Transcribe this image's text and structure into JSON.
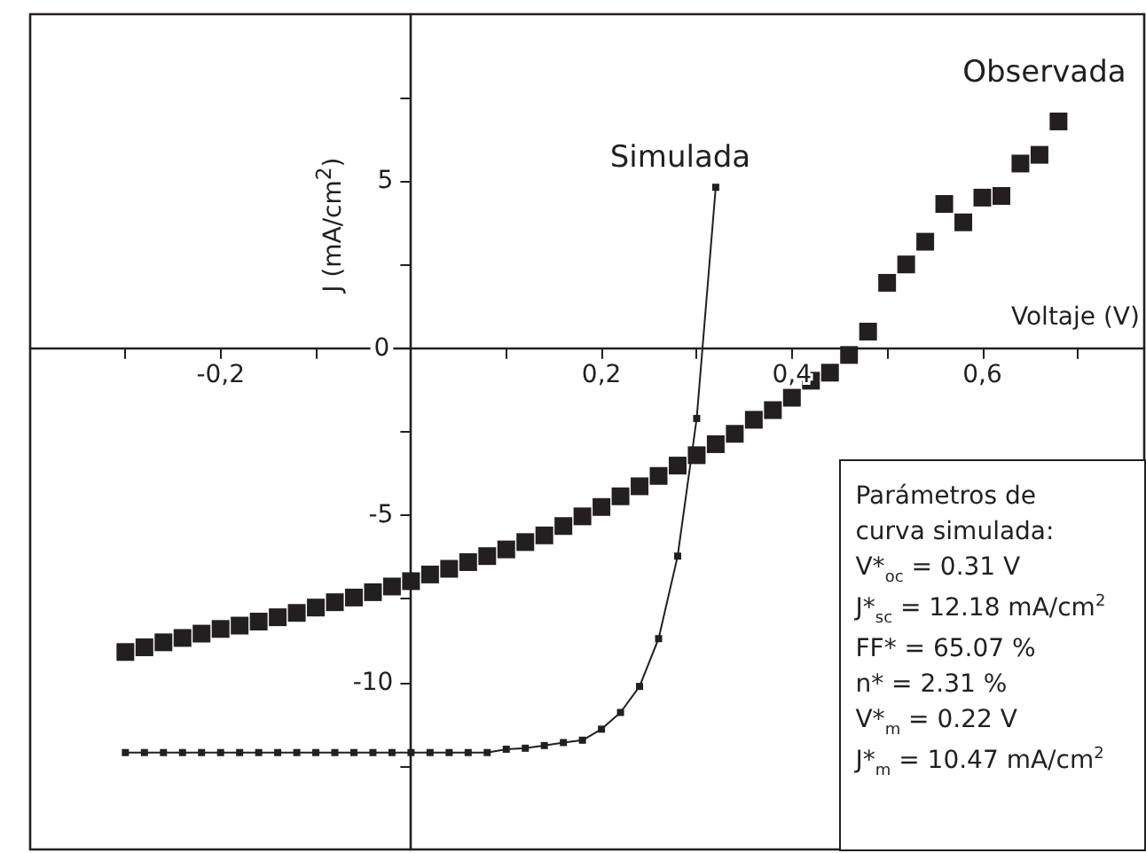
{
  "chart_data": {
    "type": "scatter",
    "xlabel": "Voltaje (V)",
    "ylabel": "J (mA/cm$^{2}$)",
    "xlim": [
      -0.4,
      0.77
    ],
    "ylim": [
      -15,
      10
    ],
    "xticks": [
      {
        "value": -0.3,
        "label": null
      },
      {
        "value": -0.2,
        "label": "-0,2"
      },
      {
        "value": -0.1,
        "label": null
      },
      {
        "value": 0.1,
        "label": null
      },
      {
        "value": 0.2,
        "label": "0,2"
      },
      {
        "value": 0.3,
        "label": null
      },
      {
        "value": 0.4,
        "label": "0,4"
      },
      {
        "value": 0.5,
        "label": null
      },
      {
        "value": 0.6,
        "label": "0,6"
      },
      {
        "value": 0.7,
        "label": null
      }
    ],
    "yticks": [
      {
        "value": -12.5,
        "label": null
      },
      -10,
      {
        "value": -7.5,
        "label": null
      },
      -5,
      {
        "value": -2.5,
        "label": null
      },
      0,
      {
        "value": 2.5,
        "label": null
      },
      5,
      {
        "value": 7.5,
        "label": null
      }
    ],
    "grid": false,
    "legend": false,
    "marker": "square",
    "series": [
      {
        "name": "Simulada",
        "type": "line",
        "color": "#231f20",
        "line_style": "solid",
        "x": [
          -0.3,
          -0.28,
          -0.26,
          -0.24,
          -0.22,
          -0.2,
          -0.18,
          -0.16,
          -0.14,
          -0.12,
          -0.1,
          -0.08,
          -0.06,
          -0.04,
          -0.02,
          0,
          0.02,
          0.04,
          0.06,
          0.08,
          0.1,
          0.12,
          0.14,
          0.16,
          0.18,
          0.2,
          0.22,
          0.24,
          0.26,
          0.28,
          0.3,
          0.32
        ],
        "values": [
          -12.1,
          -12.1,
          -12.1,
          -12.1,
          -12.1,
          -12.1,
          -12.1,
          -12.1,
          -12.1,
          -12.1,
          -12.1,
          -12.1,
          -12.1,
          -12.1,
          -12.1,
          -12.1,
          -12.1,
          -12.1,
          -12.1,
          -12.1,
          -12.0,
          -11.97,
          -11.89,
          -11.8,
          -11.73,
          -11.4,
          -10.9,
          -10.12,
          -8.69,
          -6.22,
          -2.1,
          4.82
        ]
      },
      {
        "name": "Observada",
        "type": "scatter",
        "color": "#231f20",
        "x": [
          -0.3,
          -0.28,
          -0.26,
          -0.24,
          -0.22,
          -0.2,
          -0.18,
          -0.16,
          -0.14,
          -0.12,
          -0.1,
          -0.08,
          -0.06,
          -0.04,
          -0.02,
          0,
          0.02,
          0.04,
          0.06,
          0.08,
          0.1,
          0.12,
          0.14,
          0.16,
          0.18,
          0.2,
          0.22,
          0.24,
          0.26,
          0.28,
          0.3,
          0.32,
          0.34,
          0.36,
          0.38,
          0.4,
          0.42,
          0.44,
          0.46,
          0.48,
          0.5,
          0.52,
          0.54,
          0.56,
          0.58,
          0.6,
          0.62,
          0.64,
          0.66,
          0.68
        ],
        "values": [
          -9.09,
          -8.95,
          -8.8,
          -8.67,
          -8.54,
          -8.4,
          -8.3,
          -8.18,
          -8.05,
          -7.92,
          -7.76,
          -7.6,
          -7.46,
          -7.3,
          -7.13,
          -6.97,
          -6.77,
          -6.6,
          -6.4,
          -6.22,
          -6.02,
          -5.8,
          -5.6,
          -5.32,
          -5.03,
          -4.75,
          -4.43,
          -4.13,
          -3.82,
          -3.51,
          -3.2,
          -2.87,
          -2.56,
          -2.14,
          -1.85,
          -1.48,
          -0.97,
          -0.73,
          -0.2,
          0.5,
          1.96,
          2.51,
          3.19,
          4.32,
          3.77,
          4.51,
          4.56,
          5.53,
          5.79,
          6.79
        ]
      }
    ],
    "annotations": [
      "Parámetros de curva simulada:",
      "V*$_{oc}$ = 0.31 V",
      "J*$_{sc}$ = 12.18 mA/cm$^{2}$",
      "FF* = 65.07 %",
      "n* = 2.31 %",
      "V*$_{m}$ = 0.22 V",
      "J*$_{m}$ = 10.47 mA/cm$^{2}$"
    ]
  }
}
